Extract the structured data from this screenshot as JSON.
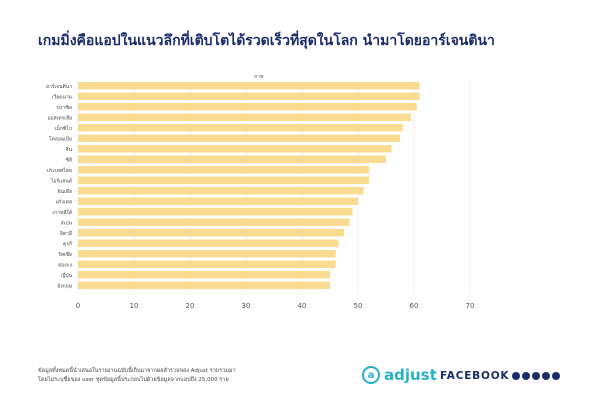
{
  "header": {
    "title": "เกมมิ่งคือแอปในแนวลึกที่เติบโตได้รวดเร็วที่สุดในโลก นำมาโดยอาร์เจนตินา"
  },
  "chart_data": {
    "type": "bar",
    "orientation": "horizontal",
    "title": "เกมมิ่งคือแอปในแนวลึกที่เติบโตได้รวดเร็วที่สุดในโลก นำมาโดยอาร์เจนตินา",
    "unit_label": "ภาพ",
    "xlim": [
      0,
      70
    ],
    "x_ticks": [
      0,
      10,
      20,
      30,
      40,
      50,
      60,
      70
    ],
    "categories": [
      "อาร์เจนตินา",
      "เวียดนาม",
      "บราซิล",
      "ออสเตรเลีย",
      "เม็กซิโก",
      "โคลอมเบีย",
      "จีน",
      "ชิลี",
      "ประเทศไทย",
      "ไอร์แลนด์",
      "อินเดีย",
      "ฝรั่งเศส",
      "เกาหลีใต้",
      "สเปน",
      "อิตาลี",
      "ตุรกี",
      "รัสเซีย",
      "ฮ่องกง",
      "ญี่ปุ่น",
      "อังกฤษ"
    ],
    "values": [
      61,
      61,
      60.5,
      59.5,
      58,
      57.5,
      56,
      55,
      52,
      52,
      51,
      50,
      49,
      48.5,
      47.5,
      46.5,
      46,
      46,
      45,
      45
    ],
    "bar_color": "#f9dc91",
    "grid": "vertical"
  },
  "footer": {
    "note_line1": "ข้อมูลทั้งหมดนี้นำเสนอในรายงานฉบับนี้เก็บมาจากผลสำรวจของ Adjust รวบรวมมา",
    "note_line2": "โดยไม่ระบุชื่อของ user ชุดข้อมูลนี้ประกอบไปด้วยข้อมูลจากแอปถึง 25,000 ราย",
    "adjust_logo": "adjust",
    "facebook_logo": "FACEBOOK",
    "social_icons": [
      "facebook-icon",
      "messenger-icon",
      "instagram-icon",
      "whatsapp-icon",
      "oculus-icon"
    ]
  }
}
